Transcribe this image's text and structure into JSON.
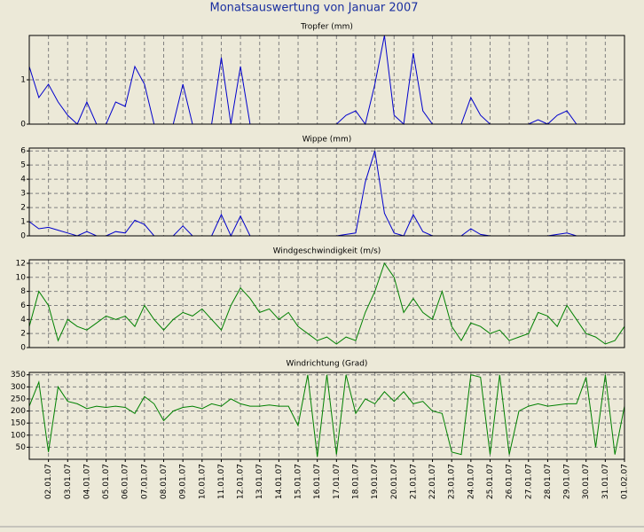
{
  "title": "Monatsauswertung von Januar 2007",
  "chart_data": [
    {
      "type": "line",
      "title": "Tropfer (mm)",
      "color": "#0000cc",
      "grid": true,
      "xlim": [
        1,
        32
      ],
      "ylim": [
        0,
        2
      ],
      "yticks": [
        0,
        1
      ],
      "x": [
        1,
        1.5,
        2,
        2.5,
        3,
        3.5,
        4,
        4.5,
        5,
        5.5,
        6,
        6.5,
        7,
        7.5,
        8,
        8.5,
        9,
        9.5,
        10,
        10.5,
        11,
        11.5,
        12,
        12.5,
        13,
        13.5,
        14,
        14.5,
        15,
        15.5,
        16,
        16.5,
        17,
        17.5,
        18,
        18.5,
        19,
        19.5,
        20,
        20.5,
        21,
        21.5,
        22,
        22.5,
        23,
        23.5,
        24,
        24.5,
        25,
        25.5,
        26,
        26.5,
        27,
        27.5,
        28,
        28.5,
        29,
        29.5,
        30,
        30.5,
        31,
        31.5,
        32
      ],
      "values": [
        1.3,
        0.6,
        0.9,
        0.5,
        0.2,
        0,
        0.5,
        0,
        0,
        0.5,
        0.4,
        1.3,
        0.9,
        0,
        0,
        0,
        0.9,
        0,
        0,
        0,
        1.5,
        0,
        1.3,
        0,
        0,
        0,
        0,
        0,
        0,
        0,
        0,
        0,
        0,
        0.2,
        0.3,
        0,
        0.9,
        2.0,
        0.2,
        0,
        1.6,
        0.3,
        0,
        0,
        0,
        0,
        0.6,
        0.2,
        0,
        0,
        0,
        0,
        0,
        0.1,
        0,
        0.2,
        0.3,
        0,
        0,
        0,
        0,
        0,
        0
      ]
    },
    {
      "type": "line",
      "title": "Wippe (mm)",
      "color": "#0000cc",
      "grid": true,
      "xlim": [
        1,
        32
      ],
      "ylim": [
        0,
        6.2
      ],
      "yticks": [
        0,
        1,
        2,
        3,
        4,
        5,
        6
      ],
      "x": [
        1,
        1.5,
        2,
        2.5,
        3,
        3.5,
        4,
        4.5,
        5,
        5.5,
        6,
        6.5,
        7,
        7.5,
        8,
        8.5,
        9,
        9.5,
        10,
        10.5,
        11,
        11.5,
        12,
        12.5,
        13,
        13.5,
        14,
        14.5,
        15,
        15.5,
        16,
        16.5,
        17,
        17.5,
        18,
        18.5,
        19,
        19.5,
        20,
        20.5,
        21,
        21.5,
        22,
        22.5,
        23,
        23.5,
        24,
        24.5,
        25,
        25.5,
        26,
        26.5,
        27,
        27.5,
        28,
        28.5,
        29,
        29.5,
        30,
        30.5,
        31,
        31.5,
        32
      ],
      "values": [
        1.0,
        0.5,
        0.6,
        0.4,
        0.2,
        0,
        0.3,
        0,
        0,
        0.3,
        0.2,
        1.1,
        0.8,
        0,
        0,
        0,
        0.7,
        0,
        0,
        0,
        1.5,
        0,
        1.4,
        0,
        0,
        0,
        0,
        0,
        0,
        0,
        0,
        0,
        0,
        0.1,
        0.2,
        3.8,
        6.0,
        1.6,
        0.2,
        0,
        1.5,
        0.3,
        0,
        0,
        0,
        0,
        0.5,
        0.1,
        0,
        0,
        0,
        0,
        0,
        0,
        0,
        0.1,
        0.2,
        0,
        0,
        0,
        0,
        0,
        0
      ]
    },
    {
      "type": "line",
      "title": "Windgeschwindigkeit (m/s)",
      "color": "#008000",
      "grid": true,
      "xlim": [
        1,
        32
      ],
      "ylim": [
        0,
        12.5
      ],
      "yticks": [
        0,
        2,
        4,
        6,
        8,
        10,
        12
      ],
      "x": [
        1,
        1.5,
        2,
        2.5,
        3,
        3.5,
        4,
        4.5,
        5,
        5.5,
        6,
        6.5,
        7,
        7.5,
        8,
        8.5,
        9,
        9.5,
        10,
        10.5,
        11,
        11.5,
        12,
        12.5,
        13,
        13.5,
        14,
        14.5,
        15,
        15.5,
        16,
        16.5,
        17,
        17.5,
        18,
        18.5,
        19,
        19.5,
        20,
        20.5,
        21,
        21.5,
        22,
        22.5,
        23,
        23.5,
        24,
        24.5,
        25,
        25.5,
        26,
        26.5,
        27,
        27.5,
        28,
        28.5,
        29,
        29.5,
        30,
        30.5,
        31,
        31.5,
        32
      ],
      "values": [
        3,
        8,
        6,
        1,
        4,
        3,
        2.5,
        3.5,
        4.5,
        4,
        4.5,
        3,
        6,
        4,
        2.5,
        4,
        5,
        4.5,
        5.5,
        4,
        2.5,
        6,
        8.5,
        7,
        5,
        5.5,
        4,
        5,
        3,
        2,
        1,
        1.5,
        0.5,
        1.5,
        1,
        5,
        8,
        12,
        10,
        5,
        7,
        5,
        4,
        8,
        3,
        1,
        3.5,
        3,
        2,
        2.5,
        1,
        1.5,
        2,
        5,
        4.5,
        3,
        6,
        4,
        2,
        1.5,
        0.5,
        1,
        3
      ]
    },
    {
      "type": "line",
      "title": "Windrichtung (Grad)",
      "color": "#008000",
      "grid": true,
      "xlim": [
        1,
        32
      ],
      "ylim": [
        0,
        360
      ],
      "yticks": [
        50,
        100,
        150,
        200,
        250,
        300,
        350
      ],
      "xticks": [
        {
          "value": 2,
          "label": "02.01.07"
        },
        {
          "value": 3,
          "label": "03.01.07"
        },
        {
          "value": 4,
          "label": "04.01.07"
        },
        {
          "value": 5,
          "label": "05.01.07"
        },
        {
          "value": 6,
          "label": "06.01.07"
        },
        {
          "value": 7,
          "label": "07.01.07"
        },
        {
          "value": 8,
          "label": "08.01.07"
        },
        {
          "value": 9,
          "label": "09.01.07"
        },
        {
          "value": 10,
          "label": "10.01.07"
        },
        {
          "value": 11,
          "label": "11.01.07"
        },
        {
          "value": 12,
          "label": "12.01.07"
        },
        {
          "value": 13,
          "label": "13.01.07"
        },
        {
          "value": 14,
          "label": "14.01.07"
        },
        {
          "value": 15,
          "label": "15.01.07"
        },
        {
          "value": 16,
          "label": "16.01.07"
        },
        {
          "value": 17,
          "label": "17.01.07"
        },
        {
          "value": 18,
          "label": "18.01.07"
        },
        {
          "value": 19,
          "label": "19.01.07"
        },
        {
          "value": 20,
          "label": "20.01.07"
        },
        {
          "value": 21,
          "label": "21.01.07"
        },
        {
          "value": 22,
          "label": "22.01.07"
        },
        {
          "value": 23,
          "label": "23.01.07"
        },
        {
          "value": 24,
          "label": "24.01.07"
        },
        {
          "value": 25,
          "label": "25.01.07"
        },
        {
          "value": 26,
          "label": "26.01.07"
        },
        {
          "value": 27,
          "label": "27.01.07"
        },
        {
          "value": 28,
          "label": "28.01.07"
        },
        {
          "value": 29,
          "label": "29.01.07"
        },
        {
          "value": 30,
          "label": "30.01.07"
        },
        {
          "value": 31,
          "label": "31.01.07"
        },
        {
          "value": 32,
          "label": "01.02.07"
        }
      ],
      "x": [
        1,
        1.5,
        2,
        2.5,
        3,
        3.5,
        4,
        4.5,
        5,
        5.5,
        6,
        6.5,
        7,
        7.5,
        8,
        8.5,
        9,
        9.5,
        10,
        10.5,
        11,
        11.5,
        12,
        12.5,
        13,
        13.5,
        14,
        14.5,
        15,
        15.5,
        16,
        16.5,
        17,
        17.5,
        18,
        18.5,
        19,
        19.5,
        20,
        20.5,
        21,
        21.5,
        22,
        22.5,
        23,
        23.5,
        24,
        24.5,
        25,
        25.5,
        26,
        26.5,
        27,
        27.5,
        28,
        28.5,
        29,
        29.5,
        30,
        30.5,
        31,
        31.5,
        32
      ],
      "values": [
        220,
        320,
        30,
        300,
        240,
        230,
        210,
        220,
        215,
        220,
        215,
        190,
        260,
        230,
        160,
        200,
        215,
        220,
        210,
        230,
        220,
        250,
        230,
        220,
        220,
        225,
        220,
        220,
        140,
        350,
        10,
        350,
        20,
        350,
        190,
        250,
        230,
        280,
        240,
        280,
        230,
        240,
        200,
        190,
        30,
        20,
        350,
        340,
        20,
        350,
        20,
        200,
        220,
        230,
        220,
        225,
        230,
        230,
        340,
        50,
        350,
        20,
        220
      ]
    }
  ]
}
